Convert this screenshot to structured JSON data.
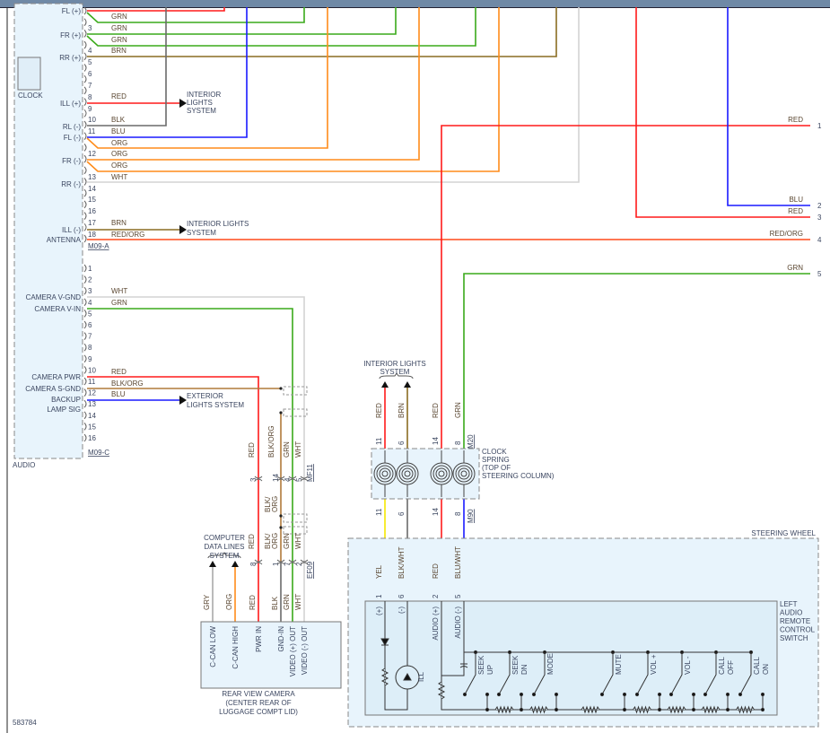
{
  "diagram_id": "583784",
  "colors": {
    "RED": "#ff1a1a",
    "GRN": "#3aaa1a",
    "BRN": "#8a6d22",
    "BLU": "#1a1aff",
    "ORG": "#ff8c1a",
    "WHT": "#d4d4d4",
    "BLK": "#6a6a6a",
    "YEL": "#f5e800",
    "GRY": "#aaaaaa",
    "REDORG": "#ff4a1a",
    "box": "#e8f4fc"
  },
  "audio": {
    "label": "AUDIO",
    "clock_label": "CLOCK",
    "connector_a": {
      "name": "M09-A",
      "pin_numbers": [
        "3",
        "4",
        "5",
        "6",
        "7",
        "8",
        "9",
        "10",
        "11",
        "12",
        "13",
        "14",
        "15",
        "16",
        "17",
        "18"
      ],
      "functions": [
        "FL (+)",
        "FR (+)",
        "RR (+)",
        "ILL (+)",
        "RL (-)",
        "FL (-)",
        "FR (-)",
        "RR (-)",
        "ILL (-)",
        "ANTENNA"
      ],
      "wire_colors": [
        "GRN",
        "GRN",
        "GRN",
        "BRN",
        "RED",
        "BLK",
        "BLU",
        "ORG",
        "ORG",
        "ORG",
        "WHT",
        "BRN",
        "RED/ORG"
      ]
    },
    "connector_c": {
      "name": "M09-C",
      "pin_numbers": [
        "1",
        "2",
        "3",
        "4",
        "5",
        "6",
        "7",
        "8",
        "9",
        "10",
        "11",
        "12",
        "13",
        "14",
        "15",
        "16"
      ],
      "functions": [
        "CAMERA V-GND",
        "CAMERA V-IN",
        "CAMERA PWR",
        "CAMERA S-GND",
        "BACKUP",
        "LAMP SIG"
      ],
      "wire_colors": [
        "WHT",
        "GRN",
        "RED",
        "BLK/ORG",
        "BLU"
      ]
    }
  },
  "destinations": {
    "interior_lights_1": [
      "INTERIOR",
      "LIGHTS",
      "SYSTEM"
    ],
    "interior_lights_2": [
      "INTERIOR LIGHTS",
      "SYSTEM"
    ],
    "exterior_lights": [
      "EXTERIOR",
      "LIGHTS SYSTEM"
    ],
    "interior_lights_3": [
      "INTERIOR LIGHTS",
      "SYSTEM"
    ],
    "computer_data_lines": [
      "COMPUTER",
      "DATA LINES",
      "SYSTEM"
    ]
  },
  "right_edge": {
    "wire_colors": [
      "RED",
      "BLU",
      "RED",
      "RED/ORG",
      "GRN"
    ],
    "pins": [
      "1",
      "2",
      "3",
      "4",
      "5"
    ]
  },
  "camera_harness": {
    "labels_top": [
      "RED",
      "BLK/ORG",
      "GRN",
      "WHT"
    ],
    "pins_mf11": [
      "3",
      "14",
      "4",
      "5"
    ],
    "connector_mf11": "MF11",
    "labels_mid": [
      "BLK/",
      "ORG"
    ],
    "labels_low": [
      "RED",
      "BLK/",
      "ORG",
      "GRN",
      "WHT"
    ],
    "pins_ef09": [
      "8",
      "1",
      "7",
      "2"
    ],
    "connector_ef09": "EF09",
    "labels_camera": [
      "GRY",
      "ORG",
      "RED",
      "BLK",
      "GRN",
      "WHT"
    ]
  },
  "rear_camera": {
    "pins": [
      "C-CAN LOW",
      "C-CAN HIGH",
      "PWR IN",
      "GND-IN",
      "VIDEO (+) OUT",
      "VIDEO (-) OUT"
    ],
    "title": [
      "REAR VIEW CAMERA",
      "(CENTER REAR OF",
      "LUGGAGE COMPT LID)"
    ]
  },
  "clock_spring": {
    "title": [
      "CLOCK",
      "SPRING",
      "(TOP OF",
      "STEERING COLUMN)"
    ],
    "upper_wires": [
      "RED",
      "BRN",
      "RED",
      "GRN"
    ],
    "upper_pins": [
      "11",
      "6",
      "14",
      "8"
    ],
    "upper_connector": "M20",
    "lower_pins": [
      "11",
      "6",
      "14",
      "8"
    ],
    "lower_connector": "M90",
    "lower_wires": [
      "YEL",
      "BLK/WHT",
      "RED",
      "BLU/WHT"
    ]
  },
  "steering_wheel": {
    "label": "STEERING WHEEL",
    "switch_pins": [
      "1",
      "6",
      "2",
      "5"
    ],
    "switch_title": [
      "LEFT",
      "AUDIO",
      "REMOTE",
      "CONTROL",
      "SWITCH"
    ],
    "terminals": [
      "(+)",
      "(-)",
      "AUDIO (+)",
      "AUDIO (-)"
    ],
    "ill": "ILL",
    "buttons": [
      [
        "SEEK",
        "UP"
      ],
      [
        "SEEK",
        "DN"
      ],
      [
        "MODE"
      ],
      [
        "MUTE"
      ],
      [
        "VOL +"
      ],
      [
        "VOL -"
      ],
      [
        "CALL",
        "OFF"
      ],
      [
        "CALL",
        "ON"
      ]
    ]
  }
}
